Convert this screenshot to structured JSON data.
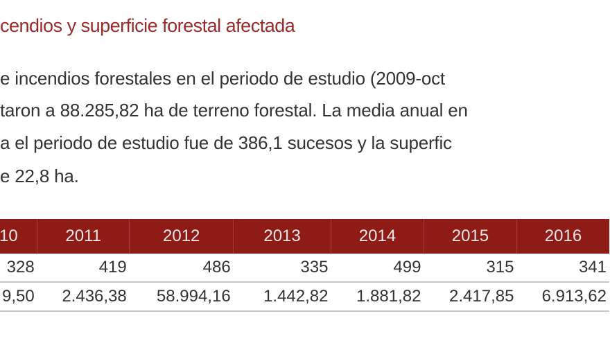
{
  "title": "cendios y superficie forestal afectada",
  "paragraph": [
    "e incendios forestales en el periodo de estudio (2009-oct",
    "taron a 88.285,82 ha de terreno forestal. La media anual en",
    "a el periodo de estudio fue de 386,1 sucesos y la superfic",
    "e 22,8 ha."
  ],
  "table": {
    "headers": [
      "10",
      "2011",
      "2012",
      "2013",
      "2014",
      "2015",
      "2016"
    ],
    "rows": [
      [
        "328",
        "419",
        "486",
        "335",
        "499",
        "315",
        "341"
      ],
      [
        "9,50",
        "2.436,38",
        "58.994,16",
        "1.442,82",
        "1.881,82",
        "2.417,85",
        "6.913,62"
      ]
    ]
  },
  "colors": {
    "header_bg": "#8e1b16",
    "title": "#9b2b2b"
  }
}
